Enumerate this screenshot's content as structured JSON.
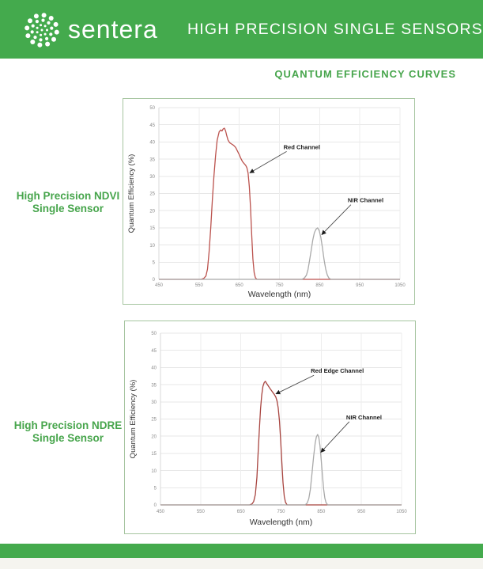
{
  "colors": {
    "brand_green": "#44aa4d",
    "accent_green": "#47a54c",
    "chart_border_green": "#a6c5a0",
    "footer_strip": "#f5f4ef"
  },
  "header": {
    "brand": "sentera",
    "logo_icon": "sentera-dot-globe-logo",
    "title": "HIGH PRECISION SINGLE SENSORS"
  },
  "subtitle": {
    "text": "QUANTUM EFFICIENCY CURVES"
  },
  "sections": [
    {
      "label_line1": "High Precision NDVI",
      "label_line2": "Single Sensor"
    },
    {
      "label_line1": "High Precision NDRE",
      "label_line2": "Single Sensor"
    }
  ],
  "chart_data": [
    {
      "type": "line",
      "title": "",
      "xlabel": "Wavelength (nm)",
      "ylabel": "Quantum Efficiency (%)",
      "xlim": [
        450,
        1050
      ],
      "ylim": [
        0,
        50
      ],
      "x_ticks": [
        450,
        550,
        650,
        750,
        850,
        950,
        1050
      ],
      "y_ticks": [
        0,
        5,
        10,
        15,
        20,
        25,
        30,
        35,
        40,
        45,
        50
      ],
      "grid": true,
      "legend_position": "none",
      "series": [
        {
          "name": "Red Channel",
          "color": "#bb524d",
          "points": [
            [
              450,
              0
            ],
            [
              555,
              0
            ],
            [
              562,
              0.3
            ],
            [
              567,
              1
            ],
            [
              571,
              3
            ],
            [
              575,
              8
            ],
            [
              579,
              15
            ],
            [
              583,
              23
            ],
            [
              587,
              30
            ],
            [
              591,
              36
            ],
            [
              595,
              40.5
            ],
            [
              600,
              43
            ],
            [
              604,
              43.5
            ],
            [
              607,
              43.2
            ],
            [
              610,
              43.8
            ],
            [
              613,
              44
            ],
            [
              616,
              43.2
            ],
            [
              619,
              41.8
            ],
            [
              622,
              40.6
            ],
            [
              626,
              39.8
            ],
            [
              631,
              39.4
            ],
            [
              636,
              39
            ],
            [
              641,
              38.4
            ],
            [
              645,
              37.5
            ],
            [
              650,
              36.3
            ],
            [
              654,
              35.2
            ],
            [
              658,
              34.3
            ],
            [
              662,
              33.7
            ],
            [
              666,
              33.2
            ],
            [
              669,
              32.5
            ],
            [
              672,
              31
            ],
            [
              675,
              27
            ],
            [
              678,
              21
            ],
            [
              681,
              13
            ],
            [
              684,
              6
            ],
            [
              687,
              2
            ],
            [
              690,
              0.5
            ],
            [
              694,
              0
            ],
            [
              1050,
              0
            ]
          ]
        },
        {
          "name": "NIR Channel",
          "color": "#a9a9a9",
          "points": [
            [
              450,
              0
            ],
            [
              806,
              0
            ],
            [
              812,
              0.4
            ],
            [
              817,
              1.2
            ],
            [
              821,
              2.8
            ],
            [
              825,
              5.5
            ],
            [
              829,
              8.5
            ],
            [
              833,
              11.5
            ],
            [
              837,
              13.6
            ],
            [
              841,
              14.6
            ],
            [
              845,
              15
            ],
            [
              849,
              14.2
            ],
            [
              853,
              12.2
            ],
            [
              857,
              9.2
            ],
            [
              861,
              5.8
            ],
            [
              865,
              3
            ],
            [
              869,
              1.3
            ],
            [
              873,
              0.4
            ],
            [
              878,
              0
            ],
            [
              1050,
              0
            ]
          ]
        }
      ],
      "annotations": [
        {
          "text": "Red Channel",
          "text_at": [
            760,
            38.5
          ],
          "arrow_to": [
            676,
            31
          ]
        },
        {
          "text": "NIR Channel",
          "text_at": [
            920,
            23
          ],
          "arrow_to": [
            855,
            13
          ]
        }
      ]
    },
    {
      "type": "line",
      "title": "",
      "xlabel": "Wavelength (nm)",
      "ylabel": "Quantum Efficiency (%)",
      "xlim": [
        450,
        1050
      ],
      "ylim": [
        0,
        50
      ],
      "x_ticks": [
        450,
        550,
        650,
        750,
        850,
        950,
        1050
      ],
      "y_ticks": [
        0,
        5,
        10,
        15,
        20,
        25,
        30,
        35,
        40,
        45,
        50
      ],
      "grid": true,
      "legend_position": "none",
      "series": [
        {
          "name": "Red Edge Channel",
          "color": "#a8443f",
          "points": [
            [
              450,
              0
            ],
            [
              672,
              0
            ],
            [
              678,
              0.3
            ],
            [
              682,
              1
            ],
            [
              686,
              3
            ],
            [
              690,
              8
            ],
            [
              693,
              15
            ],
            [
              696,
              22
            ],
            [
              699,
              28
            ],
            [
              702,
              32
            ],
            [
              705,
              34.5
            ],
            [
              708,
              35.6
            ],
            [
              711,
              36
            ],
            [
              714,
              35.4
            ],
            [
              718,
              34.7
            ],
            [
              723,
              33.8
            ],
            [
              728,
              33
            ],
            [
              733,
              32.2
            ],
            [
              737,
              31.4
            ],
            [
              740,
              30.3
            ],
            [
              743,
              28.3
            ],
            [
              746,
              24.5
            ],
            [
              749,
              19
            ],
            [
              752,
              12.5
            ],
            [
              755,
              6.5
            ],
            [
              758,
              2.5
            ],
            [
              761,
              0.8
            ],
            [
              765,
              0
            ],
            [
              1050,
              0
            ]
          ]
        },
        {
          "name": "NIR Channel",
          "color": "#a9a9a9",
          "points": [
            [
              450,
              0
            ],
            [
              810,
              0
            ],
            [
              815,
              0.5
            ],
            [
              819,
              1.8
            ],
            [
              823,
              4.5
            ],
            [
              827,
              9
            ],
            [
              831,
              14
            ],
            [
              835,
              18
            ],
            [
              838,
              19.8
            ],
            [
              841,
              20.5
            ],
            [
              844,
              19.6
            ],
            [
              847,
              17.2
            ],
            [
              850,
              13.2
            ],
            [
              853,
              8.6
            ],
            [
              856,
              4.6
            ],
            [
              859,
              2
            ],
            [
              862,
              0.7
            ],
            [
              866,
              0
            ],
            [
              1050,
              0
            ]
          ]
        }
      ],
      "annotations": [
        {
          "text": "Red Edge Channel",
          "text_at": [
            824,
            39
          ],
          "arrow_to": [
            737,
            32.3
          ]
        },
        {
          "text": "NIR Channel",
          "text_at": [
            912,
            25.5
          ],
          "arrow_to": [
            849,
            15.3
          ]
        }
      ]
    }
  ]
}
